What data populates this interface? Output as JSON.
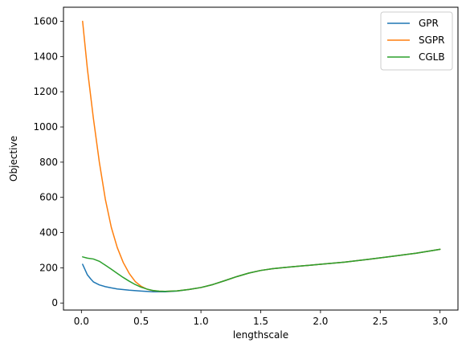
{
  "chart_data": {
    "type": "line",
    "title": "",
    "xlabel": "lengthscale",
    "ylabel": "Objective",
    "xlim": [
      -0.15,
      3.15
    ],
    "ylim": [
      -40,
      1680
    ],
    "xticks": [
      0.0,
      0.5,
      1.0,
      1.5,
      2.0,
      2.5,
      3.0
    ],
    "xtick_labels": [
      "0.0",
      "0.5",
      "1.0",
      "1.5",
      "2.0",
      "2.5",
      "3.0"
    ],
    "yticks": [
      0,
      200,
      400,
      600,
      800,
      1000,
      1200,
      1400,
      1600
    ],
    "ytick_labels": [
      "0",
      "200",
      "400",
      "600",
      "800",
      "1000",
      "1200",
      "1400",
      "1600"
    ],
    "grid": false,
    "legend_position": "top-right",
    "series": [
      {
        "name": "GPR",
        "color": "#1f77b4",
        "points": [
          [
            0.01,
            220
          ],
          [
            0.03,
            190
          ],
          [
            0.05,
            160
          ],
          [
            0.08,
            135
          ],
          [
            0.1,
            120
          ],
          [
            0.15,
            103
          ],
          [
            0.2,
            93
          ],
          [
            0.25,
            86
          ],
          [
            0.3,
            80
          ],
          [
            0.4,
            73
          ],
          [
            0.5,
            68
          ],
          [
            0.6,
            64
          ],
          [
            0.7,
            64
          ],
          [
            0.8,
            68
          ],
          [
            0.9,
            77
          ],
          [
            1.0,
            88
          ],
          [
            1.1,
            105
          ],
          [
            1.2,
            127
          ],
          [
            1.3,
            150
          ],
          [
            1.4,
            170
          ],
          [
            1.5,
            185
          ],
          [
            1.6,
            195
          ],
          [
            1.7,
            202
          ],
          [
            1.8,
            208
          ],
          [
            1.9,
            214
          ],
          [
            2.0,
            220
          ],
          [
            2.2,
            232
          ],
          [
            2.4,
            248
          ],
          [
            2.6,
            265
          ],
          [
            2.8,
            283
          ],
          [
            3.0,
            305
          ]
        ]
      },
      {
        "name": "SGPR",
        "color": "#ff7f0e",
        "points": [
          [
            0.01,
            1600
          ],
          [
            0.05,
            1330
          ],
          [
            0.1,
            1050
          ],
          [
            0.15,
            800
          ],
          [
            0.2,
            590
          ],
          [
            0.25,
            430
          ],
          [
            0.3,
            315
          ],
          [
            0.35,
            230
          ],
          [
            0.4,
            168
          ],
          [
            0.45,
            122
          ],
          [
            0.5,
            95
          ],
          [
            0.55,
            78
          ],
          [
            0.6,
            70
          ],
          [
            0.65,
            67
          ],
          [
            0.7,
            66
          ],
          [
            0.8,
            69
          ],
          [
            0.9,
            77
          ],
          [
            1.0,
            88
          ],
          [
            1.1,
            105
          ],
          [
            1.2,
            127
          ],
          [
            1.3,
            150
          ],
          [
            1.4,
            170
          ],
          [
            1.5,
            185
          ],
          [
            1.6,
            195
          ],
          [
            1.7,
            202
          ],
          [
            1.8,
            208
          ],
          [
            1.9,
            214
          ],
          [
            2.0,
            220
          ],
          [
            2.2,
            232
          ],
          [
            2.4,
            248
          ],
          [
            2.6,
            265
          ],
          [
            2.8,
            283
          ],
          [
            3.0,
            305
          ]
        ]
      },
      {
        "name": "CGLB",
        "color": "#2ca02c",
        "points": [
          [
            0.01,
            262
          ],
          [
            0.05,
            255
          ],
          [
            0.1,
            250
          ],
          [
            0.15,
            237
          ],
          [
            0.2,
            215
          ],
          [
            0.25,
            192
          ],
          [
            0.3,
            168
          ],
          [
            0.35,
            145
          ],
          [
            0.4,
            124
          ],
          [
            0.45,
            105
          ],
          [
            0.5,
            90
          ],
          [
            0.55,
            79
          ],
          [
            0.6,
            71
          ],
          [
            0.65,
            67
          ],
          [
            0.7,
            66
          ],
          [
            0.8,
            69
          ],
          [
            0.9,
            77
          ],
          [
            1.0,
            88
          ],
          [
            1.1,
            105
          ],
          [
            1.2,
            127
          ],
          [
            1.3,
            150
          ],
          [
            1.4,
            170
          ],
          [
            1.5,
            185
          ],
          [
            1.6,
            195
          ],
          [
            1.7,
            202
          ],
          [
            1.8,
            208
          ],
          [
            1.9,
            214
          ],
          [
            2.0,
            220
          ],
          [
            2.2,
            232
          ],
          [
            2.4,
            248
          ],
          [
            2.6,
            265
          ],
          [
            2.8,
            283
          ],
          [
            3.0,
            305
          ]
        ]
      }
    ]
  }
}
